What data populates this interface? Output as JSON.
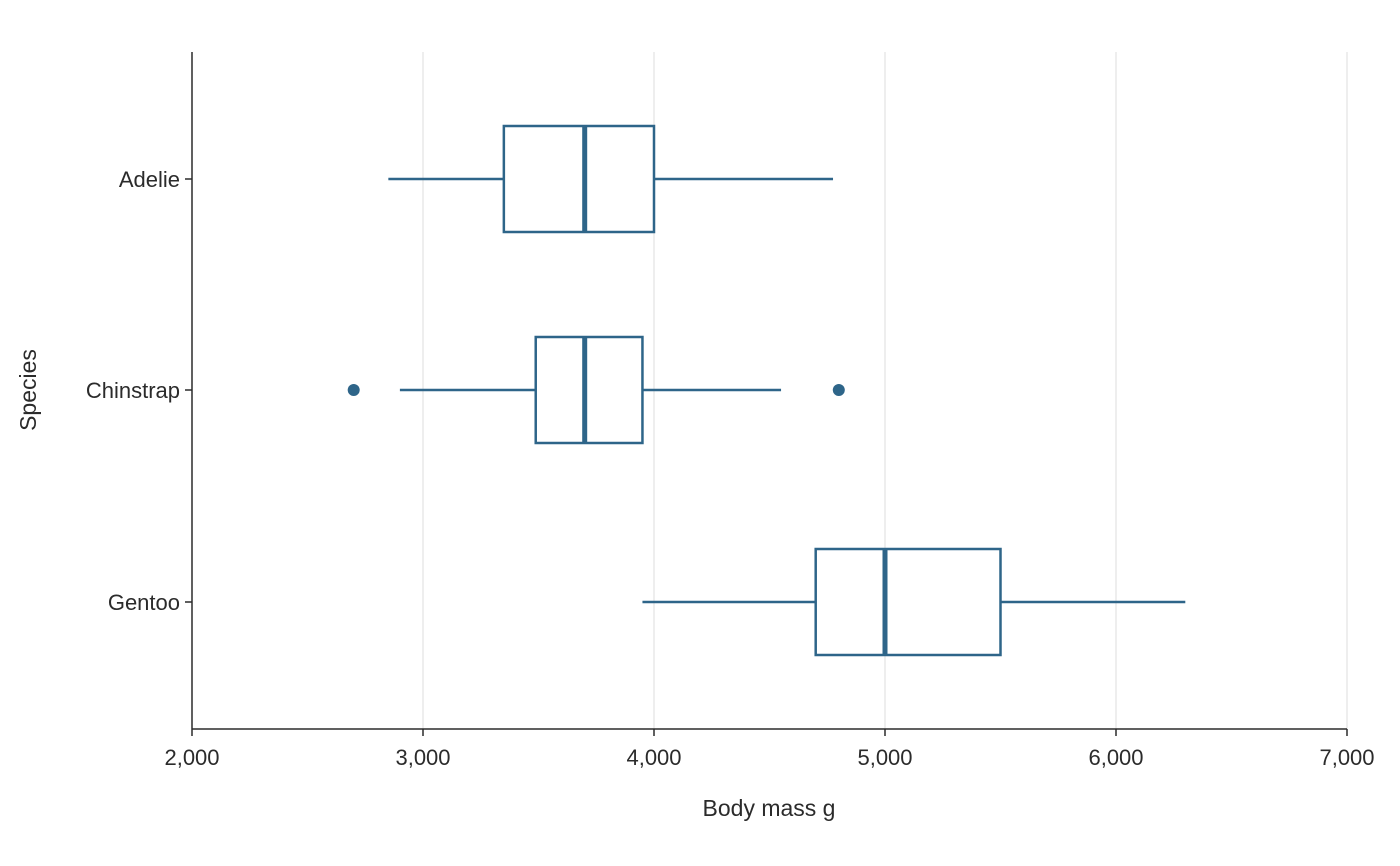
{
  "chart_data": {
    "type": "boxplot",
    "orientation": "horizontal",
    "xlabel": "Body mass g",
    "ylabel": "Species",
    "xlim": [
      2000,
      7000
    ],
    "x_ticks": [
      2000,
      3000,
      4000,
      5000,
      6000,
      7000
    ],
    "x_tick_labels": [
      "2,000",
      "3,000",
      "4,000",
      "5,000",
      "6,000",
      "7,000"
    ],
    "categories": [
      "Adelie",
      "Chinstrap",
      "Gentoo"
    ],
    "grid": {
      "vertical": true,
      "horizontal": false
    },
    "color": "#2e6589",
    "boxes": [
      {
        "category": "Adelie",
        "whisker_low": 2850,
        "q1": 3350,
        "median": 3700,
        "q3": 4000,
        "whisker_high": 4775,
        "outliers": []
      },
      {
        "category": "Chinstrap",
        "whisker_low": 2900,
        "q1": 3488,
        "median": 3700,
        "q3": 3950,
        "whisker_high": 4550,
        "outliers": [
          2700,
          4800
        ]
      },
      {
        "category": "Gentoo",
        "whisker_low": 3950,
        "q1": 4700,
        "median": 5000,
        "q3": 5500,
        "whisker_high": 6300,
        "outliers": []
      }
    ]
  }
}
